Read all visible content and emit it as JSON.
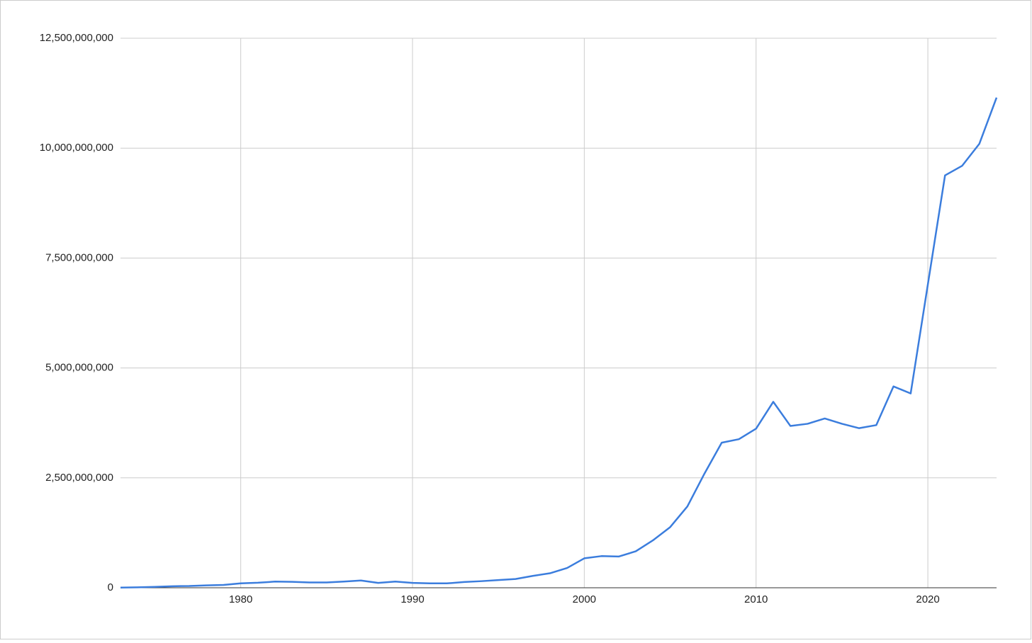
{
  "chart_data": {
    "type": "line",
    "x": [
      1973,
      1974,
      1975,
      1976,
      1977,
      1978,
      1979,
      1980,
      1981,
      1982,
      1983,
      1984,
      1985,
      1986,
      1987,
      1988,
      1989,
      1990,
      1991,
      1992,
      1993,
      1994,
      1995,
      1996,
      1997,
      1998,
      1999,
      2000,
      2001,
      2002,
      2003,
      2004,
      2005,
      2006,
      2007,
      2008,
      2009,
      2010,
      2011,
      2012,
      2013,
      2014,
      2015,
      2016,
      2017,
      2018,
      2019,
      2020,
      2021,
      2022,
      2023,
      2024
    ],
    "series": [
      {
        "color": "#3b7ddd",
        "values": [
          5000000,
          10000000,
          20000000,
          35000000,
          40000000,
          55000000,
          65000000,
          100000000,
          115000000,
          140000000,
          135000000,
          120000000,
          120000000,
          140000000,
          165000000,
          110000000,
          140000000,
          110000000,
          100000000,
          100000000,
          130000000,
          150000000,
          175000000,
          200000000,
          270000000,
          330000000,
          450000000,
          670000000,
          720000000,
          710000000,
          830000000,
          1080000000,
          1380000000,
          1850000000,
          2600000000,
          3300000000,
          3380000000,
          3620000000,
          4230000000,
          3680000000,
          3730000000,
          3850000000,
          3730000000,
          3630000000,
          3700000000,
          4580000000,
          4420000000,
          6900000000,
          9380000000,
          9600000000,
          10100000000,
          11150000000
        ]
      }
    ],
    "xlim": [
      1973,
      2024
    ],
    "xticks": [
      1980,
      1990,
      2000,
      2010,
      2020
    ],
    "ylim": [
      0,
      12500000000
    ],
    "yticks": [
      0,
      {
        "value": 2500000000,
        "label": "2,500,000,000"
      },
      {
        "value": 5000000000,
        "label": "5,000,000,000"
      },
      {
        "value": 7500000000,
        "label": "7,500,000,000"
      },
      {
        "value": 10000000000,
        "label": "10,000,000,000"
      },
      {
        "value": 12500000000,
        "label": "12,500,000,000"
      }
    ],
    "grid": true
  }
}
